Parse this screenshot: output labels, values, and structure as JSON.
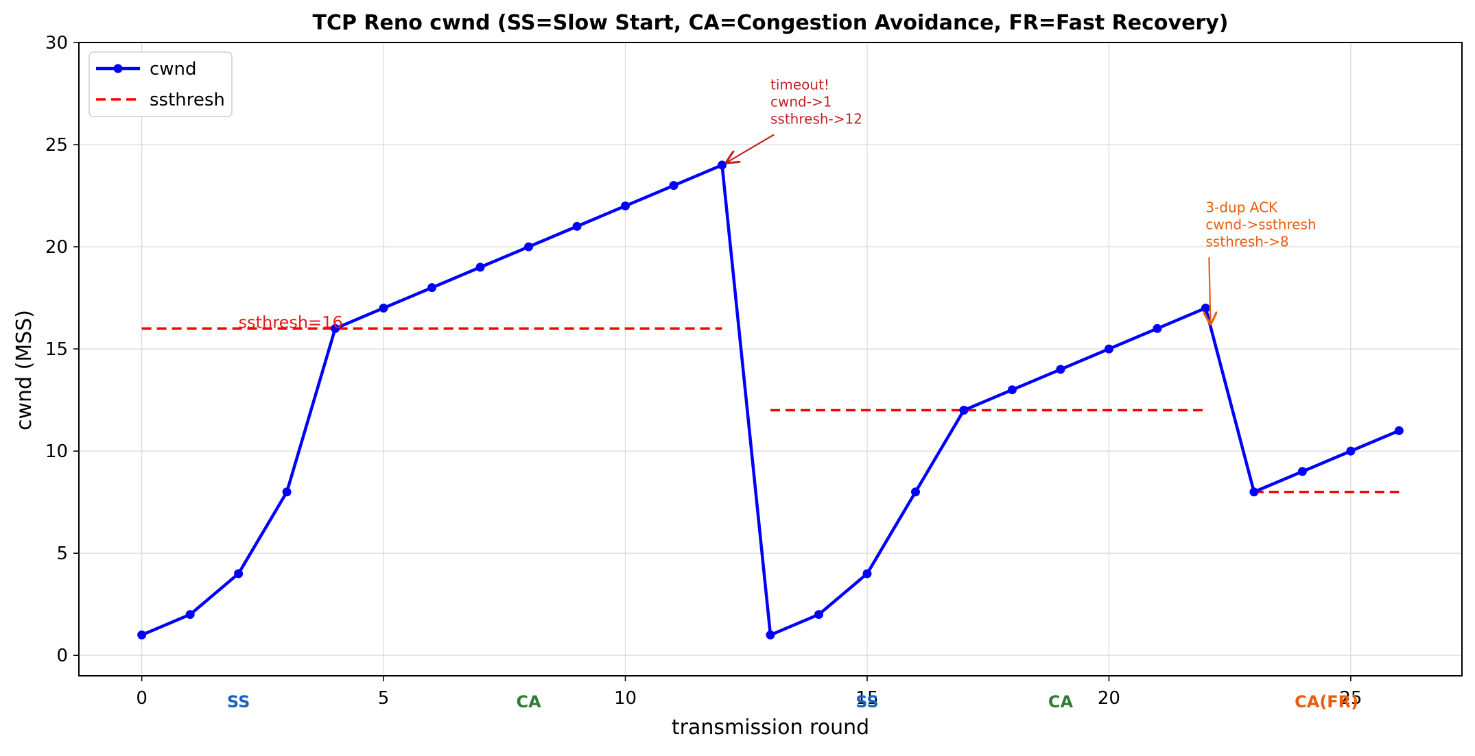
{
  "chart_data": {
    "type": "line",
    "title": "TCP Reno cwnd (SS=Slow Start, CA=Congestion Avoidance, FR=Fast Recovery)",
    "xlabel": "transmission round",
    "ylabel": "cwnd (MSS)",
    "xlim": [
      -1.3,
      27.3
    ],
    "ylim": [
      -1,
      30
    ],
    "xticks": [
      0,
      5,
      10,
      15,
      20,
      25
    ],
    "yticks": [
      0,
      5,
      10,
      15,
      20,
      25,
      30
    ],
    "grid": true,
    "legend_position": "top-left",
    "series": [
      {
        "name": "cwnd",
        "kind": "line-marker",
        "color": "#0000ff",
        "x": [
          0,
          1,
          2,
          3,
          4,
          5,
          6,
          7,
          8,
          9,
          10,
          11,
          12,
          13,
          14,
          15,
          16,
          17,
          18,
          19,
          20,
          21,
          22,
          23,
          24,
          25,
          26
        ],
        "y": [
          1,
          2,
          4,
          8,
          16,
          17,
          18,
          19,
          20,
          21,
          22,
          23,
          24,
          1,
          2,
          4,
          8,
          12,
          13,
          14,
          15,
          16,
          17,
          8,
          9,
          10,
          11
        ]
      },
      {
        "name": "ssthresh",
        "kind": "dashed",
        "color": "#ff0000",
        "segments": [
          {
            "x": [
              0,
              12
            ],
            "y": 16
          },
          {
            "x": [
              13,
              22
            ],
            "y": 12
          },
          {
            "x": [
              23,
              26
            ],
            "y": 8
          }
        ]
      }
    ],
    "annotations": [
      {
        "id": "ssthresh-label",
        "text": "ssthresh=16",
        "x": 2,
        "y": 16,
        "color": "#e11c1c"
      },
      {
        "id": "timeout",
        "lines": [
          "timeout!",
          "cwnd->1",
          "ssthresh->12"
        ],
        "text_x": 13,
        "text_y": 27.7,
        "arrow_to": {
          "x": 12,
          "y": 24
        },
        "color": "#c41f1f"
      },
      {
        "id": "dupack",
        "lines": [
          "3-dup ACK",
          "cwnd->ssthresh",
          "ssthresh->8"
        ],
        "text_x": 22,
        "text_y": 21.7,
        "arrow_to": {
          "x": 22,
          "y": 16.1
        },
        "color": "#ea5b0c"
      }
    ],
    "phase_labels": [
      {
        "text": "SS",
        "x": 2,
        "color": "#1565c0"
      },
      {
        "text": "CA",
        "x": 8,
        "color": "#2e7d32"
      },
      {
        "text": "SS",
        "x": 15,
        "color": "#1565c0"
      },
      {
        "text": "CA",
        "x": 19,
        "color": "#2e7d32"
      },
      {
        "text": "CA(FR)",
        "x": 24.5,
        "color": "#ea5b0c"
      }
    ]
  }
}
